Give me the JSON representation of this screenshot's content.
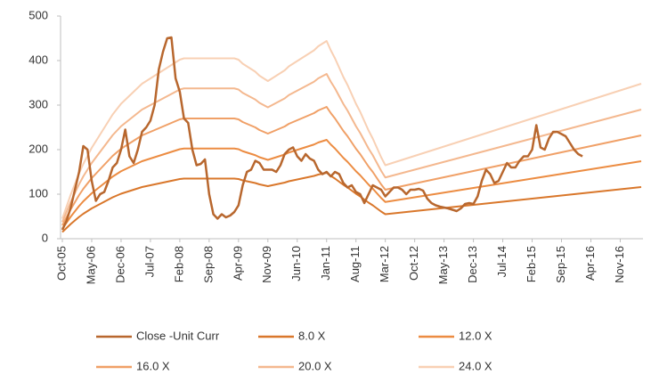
{
  "chart_data": {
    "type": "line",
    "categories": [
      "Oct-05",
      null,
      null,
      null,
      null,
      null,
      null,
      "May-06",
      null,
      null,
      null,
      null,
      null,
      null,
      "Dec-06",
      null,
      null,
      null,
      null,
      null,
      null,
      "Jul-07",
      null,
      null,
      null,
      null,
      null,
      null,
      "Feb-08",
      null,
      null,
      null,
      null,
      null,
      null,
      "Sep-08",
      null,
      null,
      null,
      null,
      null,
      null,
      "Apr-09",
      null,
      null,
      null,
      null,
      null,
      null,
      "Nov-09",
      null,
      null,
      null,
      null,
      null,
      null,
      "Jun-10",
      null,
      null,
      null,
      null,
      null,
      null,
      "Jan-11",
      null,
      null,
      null,
      null,
      null,
      null,
      "Aug-11",
      null,
      null,
      null,
      null,
      null,
      null,
      "Mar-12",
      null,
      null,
      null,
      null,
      null,
      null,
      "Oct-12",
      null,
      null,
      null,
      null,
      null,
      null,
      "May-13",
      null,
      null,
      null,
      null,
      null,
      null,
      "Dec-13",
      null,
      null,
      null,
      null,
      null,
      null,
      "Jul-14",
      null,
      null,
      null,
      null,
      null,
      null,
      "Feb-15",
      null,
      null,
      null,
      null,
      null,
      null,
      "Sep-15",
      null,
      null,
      null,
      null,
      null,
      null,
      "Apr-16",
      null,
      null,
      null,
      null,
      null,
      null,
      "Nov-16",
      null,
      null,
      null,
      null,
      null
    ],
    "series": [
      {
        "name": "Close -Unit Curr",
        "color": "#b8672e",
        "values": [
          20,
          40,
          70,
          110,
          150,
          208,
          200,
          130,
          85,
          100,
          105,
          130,
          160,
          170,
          200,
          245,
          185,
          170,
          200,
          240,
          250,
          265,
          300,
          380,
          420,
          450,
          452,
          360,
          330,
          270,
          260,
          200,
          165,
          168,
          178,
          100,
          55,
          45,
          55,
          48,
          52,
          60,
          75,
          120,
          150,
          155,
          175,
          170,
          155,
          155,
          155,
          150,
          165,
          190,
          200,
          205,
          185,
          175,
          190,
          180,
          175,
          155,
          145,
          150,
          140,
          150,
          145,
          125,
          115,
          120,
          105,
          100,
          80,
          100,
          120,
          115,
          110,
          95,
          105,
          115,
          115,
          110,
          100,
          110,
          110,
          112,
          108,
          90,
          80,
          75,
          72,
          70,
          68,
          65,
          62,
          68,
          78,
          80,
          78,
          95,
          130,
          155,
          145,
          125,
          130,
          150,
          170,
          160,
          160,
          175,
          185,
          185,
          200,
          255,
          205,
          200,
          225,
          240,
          240,
          235,
          230,
          215,
          200,
          190,
          185,
          null,
          null,
          null,
          null,
          null,
          null,
          null,
          null,
          null,
          null,
          null,
          null,
          null,
          null
        ]
      },
      {
        "name": "8.0 X",
        "color": "#d9772b",
        "values": [
          15,
          24,
          33,
          41,
          49,
          56,
          62,
          68,
          73,
          78,
          83,
          88,
          93,
          97,
          101,
          104,
          107,
          110,
          113,
          116,
          118,
          120,
          122,
          124,
          126,
          128,
          130,
          132,
          134,
          135,
          135,
          135,
          135,
          135,
          135,
          135,
          135,
          135,
          135,
          135,
          135,
          135,
          134,
          131,
          129,
          127,
          125,
          122,
          120,
          118,
          120,
          122,
          124,
          126,
          129,
          131,
          133,
          135,
          137,
          139,
          141,
          144,
          146,
          148,
          141,
          135,
          128,
          121,
          115,
          108,
          101,
          95,
          88,
          81,
          75,
          68,
          61,
          55,
          56,
          57,
          58,
          59,
          60,
          61,
          62,
          63,
          64,
          65,
          66,
          67,
          68,
          69,
          70,
          71,
          72,
          73,
          74,
          75,
          76,
          77,
          78,
          79,
          80,
          81,
          82,
          83,
          84,
          85,
          86,
          87,
          88,
          89,
          90,
          91,
          92,
          93,
          94,
          95,
          96,
          97,
          98,
          99,
          100,
          101,
          102,
          103,
          104,
          105,
          106,
          107,
          108,
          109,
          110,
          111,
          112,
          113,
          114,
          115,
          116
        ]
      },
      {
        "name": "12.0 X",
        "color": "#ec8c42",
        "values": [
          22.5,
          36,
          49.5,
          61.5,
          73.5,
          84,
          93,
          102,
          109.5,
          117,
          124.5,
          132,
          139.5,
          145.5,
          151.5,
          156,
          160.5,
          165,
          169.5,
          174,
          177,
          180,
          183,
          186,
          189,
          192,
          195,
          198,
          201,
          202.5,
          202.5,
          202.5,
          202.5,
          202.5,
          202.5,
          202.5,
          202.5,
          202.5,
          202.5,
          202.5,
          202.5,
          202.5,
          201,
          196.5,
          193.5,
          190.5,
          187.5,
          183,
          180,
          177,
          180,
          183,
          186,
          189,
          193.5,
          196.5,
          199.5,
          202.5,
          205.5,
          208.5,
          211.5,
          216,
          219,
          222,
          211.5,
          202.5,
          192,
          181.5,
          172.5,
          162,
          151.5,
          142.5,
          132,
          121.5,
          112.5,
          102,
          91.5,
          82.5,
          84,
          85.5,
          87,
          88.5,
          90,
          91.5,
          93,
          94.5,
          96,
          97.5,
          99,
          100.5,
          102,
          103.5,
          105,
          106.5,
          108,
          109.5,
          111,
          112.5,
          114,
          115.5,
          117,
          118.5,
          120,
          121.5,
          123,
          124.5,
          126,
          127.5,
          129,
          130.5,
          132,
          133.5,
          135,
          136.5,
          138,
          139.5,
          141,
          142.5,
          144,
          145.5,
          147,
          148.5,
          150,
          151.5,
          153,
          154.5,
          156,
          157.5,
          159,
          160.5,
          162,
          163.5,
          165,
          166.5,
          168,
          169.5,
          171,
          172.5,
          174
        ]
      },
      {
        "name": "16.0 X",
        "color": "#f0a067",
        "values": [
          30,
          48,
          66,
          82,
          98,
          112,
          124,
          136,
          146,
          156,
          166,
          176,
          186,
          194,
          202,
          208,
          214,
          220,
          226,
          232,
          236,
          240,
          244,
          248,
          252,
          256,
          260,
          264,
          268,
          270,
          270,
          270,
          270,
          270,
          270,
          270,
          270,
          270,
          270,
          270,
          270,
          270,
          268,
          262,
          258,
          254,
          250,
          244,
          240,
          236,
          240,
          244,
          248,
          252,
          258,
          262,
          266,
          270,
          274,
          278,
          282,
          288,
          292,
          296,
          282,
          270,
          256,
          242,
          230,
          216,
          202,
          190,
          176,
          162,
          150,
          136,
          122,
          110,
          112,
          114,
          116,
          118,
          120,
          122,
          124,
          126,
          128,
          130,
          132,
          134,
          136,
          138,
          140,
          142,
          144,
          146,
          148,
          150,
          152,
          154,
          156,
          158,
          160,
          162,
          164,
          166,
          168,
          170,
          172,
          174,
          176,
          178,
          180,
          182,
          184,
          186,
          188,
          190,
          192,
          194,
          196,
          198,
          200,
          202,
          204,
          206,
          208,
          210,
          212,
          214,
          216,
          218,
          220,
          222,
          224,
          226,
          228,
          230,
          232
        ]
      },
      {
        "name": "20.0 X",
        "color": "#f4b88f",
        "values": [
          37.5,
          60,
          82.5,
          102.5,
          122.5,
          140,
          155,
          170,
          182.5,
          195,
          207.5,
          220,
          232.5,
          242.5,
          252.5,
          260,
          267.5,
          275,
          282.5,
          290,
          295,
          300,
          305,
          310,
          315,
          320,
          325,
          330,
          335,
          337.5,
          337.5,
          337.5,
          337.5,
          337.5,
          337.5,
          337.5,
          337.5,
          337.5,
          337.5,
          337.5,
          337.5,
          337.5,
          335,
          327.5,
          322.5,
          317.5,
          312.5,
          305,
          300,
          295,
          300,
          305,
          310,
          315,
          322.5,
          327.5,
          332.5,
          337.5,
          342.5,
          347.5,
          352.5,
          360,
          365,
          370,
          352.5,
          337.5,
          320,
          302.5,
          287.5,
          270,
          252.5,
          237.5,
          220,
          202.5,
          187.5,
          170,
          152.5,
          137.5,
          140,
          142.5,
          145,
          147.5,
          150,
          152.5,
          155,
          157.5,
          160,
          162.5,
          165,
          167.5,
          170,
          172.5,
          175,
          177.5,
          180,
          182.5,
          185,
          187.5,
          190,
          192.5,
          195,
          197.5,
          200,
          202.5,
          205,
          207.5,
          210,
          212.5,
          215,
          217.5,
          220,
          222.5,
          225,
          227.5,
          230,
          232.5,
          235,
          237.5,
          240,
          242.5,
          245,
          247.5,
          250,
          252.5,
          255,
          257.5,
          260,
          262.5,
          265,
          267.5,
          270,
          272.5,
          275,
          277.5,
          280,
          282.5,
          285,
          287.5,
          290
        ]
      },
      {
        "name": "24.0 X",
        "color": "#f8d0b4",
        "values": [
          45,
          72,
          99,
          123,
          147,
          168,
          186,
          204,
          219,
          234,
          249,
          264,
          279,
          291,
          303,
          312,
          321,
          330,
          339,
          348,
          354,
          360,
          366,
          372,
          378,
          384,
          390,
          396,
          402,
          405,
          405,
          405,
          405,
          405,
          405,
          405,
          405,
          405,
          405,
          405,
          405,
          405,
          402,
          393,
          387,
          381,
          375,
          366,
          360,
          354,
          360,
          366,
          372,
          378,
          387,
          393,
          399,
          405,
          411,
          417,
          423,
          432,
          438,
          444,
          423,
          405,
          384,
          363,
          345,
          324,
          303,
          285,
          264,
          243,
          225,
          204,
          183,
          165,
          168,
          171,
          174,
          177,
          180,
          183,
          186,
          189,
          192,
          195,
          198,
          201,
          204,
          207,
          210,
          213,
          216,
          219,
          222,
          225,
          228,
          231,
          234,
          237,
          240,
          243,
          246,
          249,
          252,
          255,
          258,
          261,
          264,
          267,
          270,
          273,
          276,
          279,
          282,
          285,
          288,
          291,
          294,
          297,
          300,
          303,
          306,
          309,
          312,
          315,
          318,
          321,
          324,
          327,
          330,
          333,
          336,
          339,
          342,
          345,
          348
        ]
      }
    ],
    "ylim": [
      0,
      500
    ],
    "yticks": [
      0,
      100,
      200,
      300,
      400,
      500
    ],
    "grid": false
  }
}
